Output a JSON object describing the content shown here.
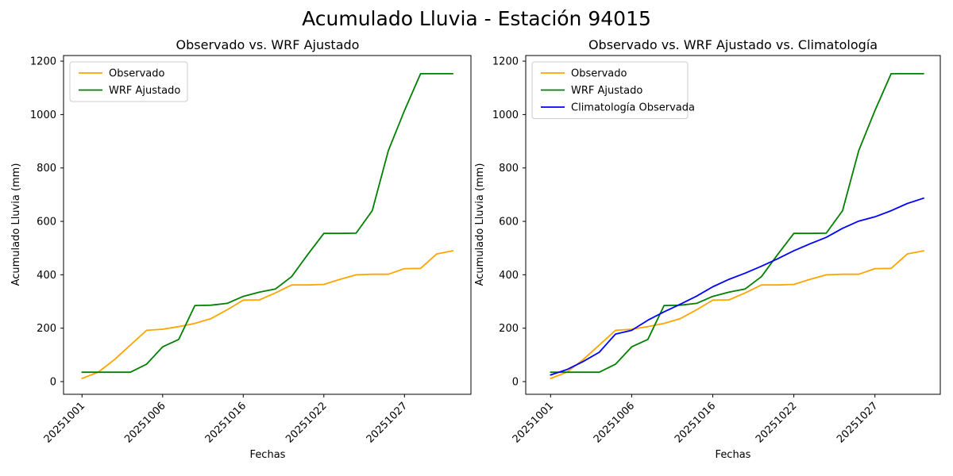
{
  "figure": {
    "title": "Acumulado Lluvia - Estación 94015",
    "background": "#ffffff",
    "text_color": "#000000"
  },
  "chart_data": [
    {
      "type": "line",
      "title": "Observado vs. WRF Ajustado",
      "xlabel": "Fechas",
      "ylabel": "Acumulado Lluvia (mm)",
      "n_points": 24,
      "x_tick_positions": [
        0,
        5,
        10,
        15,
        20
      ],
      "x_tick_labels": [
        "20251001",
        "20251006",
        "20251016",
        "20251022",
        "20251027"
      ],
      "x_tick_rotation": 45,
      "y_ticks": [
        0,
        200,
        400,
        600,
        800,
        1000,
        1200
      ],
      "ylim": [
        -48,
        1221
      ],
      "xlim": [
        -1.15,
        24.15
      ],
      "grid": false,
      "legend_position": "upper-left",
      "legend": [
        "Observado",
        "WRF Ajustado"
      ],
      "series": [
        {
          "name": "Observado",
          "color": "#FFA500",
          "values": [
            12,
            35,
            82,
            137,
            192,
            196,
            206,
            218,
            236,
            269,
            305,
            306,
            332,
            362,
            362,
            364,
            383,
            400,
            402,
            402,
            423,
            424,
            478,
            490
          ]
        },
        {
          "name": "WRF Ajustado",
          "color": "#008000",
          "values": [
            35,
            35,
            35,
            35,
            65,
            130,
            158,
            285,
            286,
            293,
            319,
            335,
            347,
            393,
            476,
            555,
            555,
            556,
            640,
            865,
            1015,
            1153,
            1153,
            1153
          ]
        }
      ]
    },
    {
      "type": "line",
      "title": "Observado vs. WRF Ajustado vs. Climatología",
      "xlabel": "Fechas",
      "ylabel": "Acumulado Lluvia (mm)",
      "n_points": 24,
      "x_tick_positions": [
        0,
        5,
        10,
        15,
        20
      ],
      "x_tick_labels": [
        "20251001",
        "20251006",
        "20251016",
        "20251022",
        "20251027"
      ],
      "x_tick_rotation": 45,
      "y_ticks": [
        0,
        200,
        400,
        600,
        800,
        1000,
        1200
      ],
      "ylim": [
        -48,
        1221
      ],
      "xlim": [
        -1.15,
        24.15
      ],
      "grid": false,
      "legend_position": "upper-left",
      "legend": [
        "Observado",
        "WRF Ajustado",
        "Climatología Observada"
      ],
      "series": [
        {
          "name": "Observado",
          "color": "#FFA500",
          "values": [
            12,
            35,
            82,
            137,
            192,
            196,
            206,
            218,
            236,
            269,
            305,
            306,
            332,
            362,
            362,
            364,
            383,
            400,
            402,
            402,
            423,
            424,
            478,
            490
          ]
        },
        {
          "name": "WRF Ajustado",
          "color": "#008000",
          "values": [
            35,
            35,
            35,
            35,
            65,
            130,
            158,
            285,
            286,
            293,
            319,
            335,
            347,
            393,
            476,
            555,
            555,
            556,
            640,
            865,
            1015,
            1153,
            1153,
            1153
          ]
        },
        {
          "name": "Climatología Observada",
          "color": "#0000FF",
          "values": [
            25,
            45,
            75,
            110,
            178,
            192,
            230,
            261,
            290,
            320,
            355,
            383,
            406,
            432,
            460,
            490,
            516,
            540,
            574,
            601,
            617,
            640,
            667,
            687
          ]
        }
      ]
    }
  ]
}
